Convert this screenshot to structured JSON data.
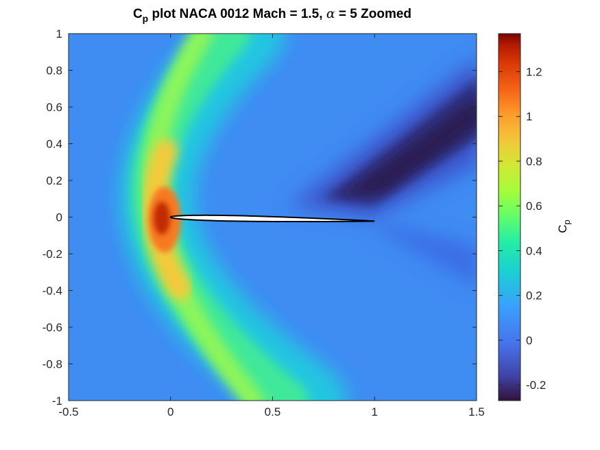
{
  "chart_data": {
    "type": "heatmap",
    "title": {
      "main_prefix": "C",
      "main_sub": "p",
      "main_rest": " plot NACA 0012 Mach = 1.5, ",
      "alpha_symbol": "α",
      "main_suffix": " = 5 Zoomed"
    },
    "xlim": [
      -0.5,
      1.5
    ],
    "ylim": [
      -1,
      1
    ],
    "x_ticks": [
      "-0.5",
      "0",
      "0.5",
      "1",
      "1.5"
    ],
    "x_tick_values": [
      -0.5,
      0,
      0.5,
      1,
      1.5
    ],
    "y_ticks": [
      "1",
      "0.8",
      "0.6",
      "0.4",
      "0.2",
      "0",
      "-0.2",
      "-0.4",
      "-0.6",
      "-0.8",
      "-1"
    ],
    "y_tick_values": [
      1,
      0.8,
      0.6,
      0.4,
      0.2,
      0,
      -0.2,
      -0.4,
      -0.6,
      -0.8,
      -1
    ],
    "colorbar": {
      "label_main": "C",
      "label_sub": "p",
      "range": [
        -0.27,
        1.37
      ],
      "ticks": [
        "1.2",
        "1",
        "0.8",
        "0.6",
        "0.4",
        "0.2",
        "0",
        "-0.2"
      ],
      "tick_values": [
        1.2,
        1.0,
        0.8,
        0.6,
        0.4,
        0.2,
        0,
        -0.2
      ],
      "colormap": "turbo"
    },
    "airfoil": {
      "name": "NACA 0012",
      "chord": 1.0,
      "angle_of_attack_deg": 5,
      "mach": 1.5,
      "fill_color": "#ffffff",
      "outline_color": "#000000"
    },
    "background_cp": -0.03
  }
}
